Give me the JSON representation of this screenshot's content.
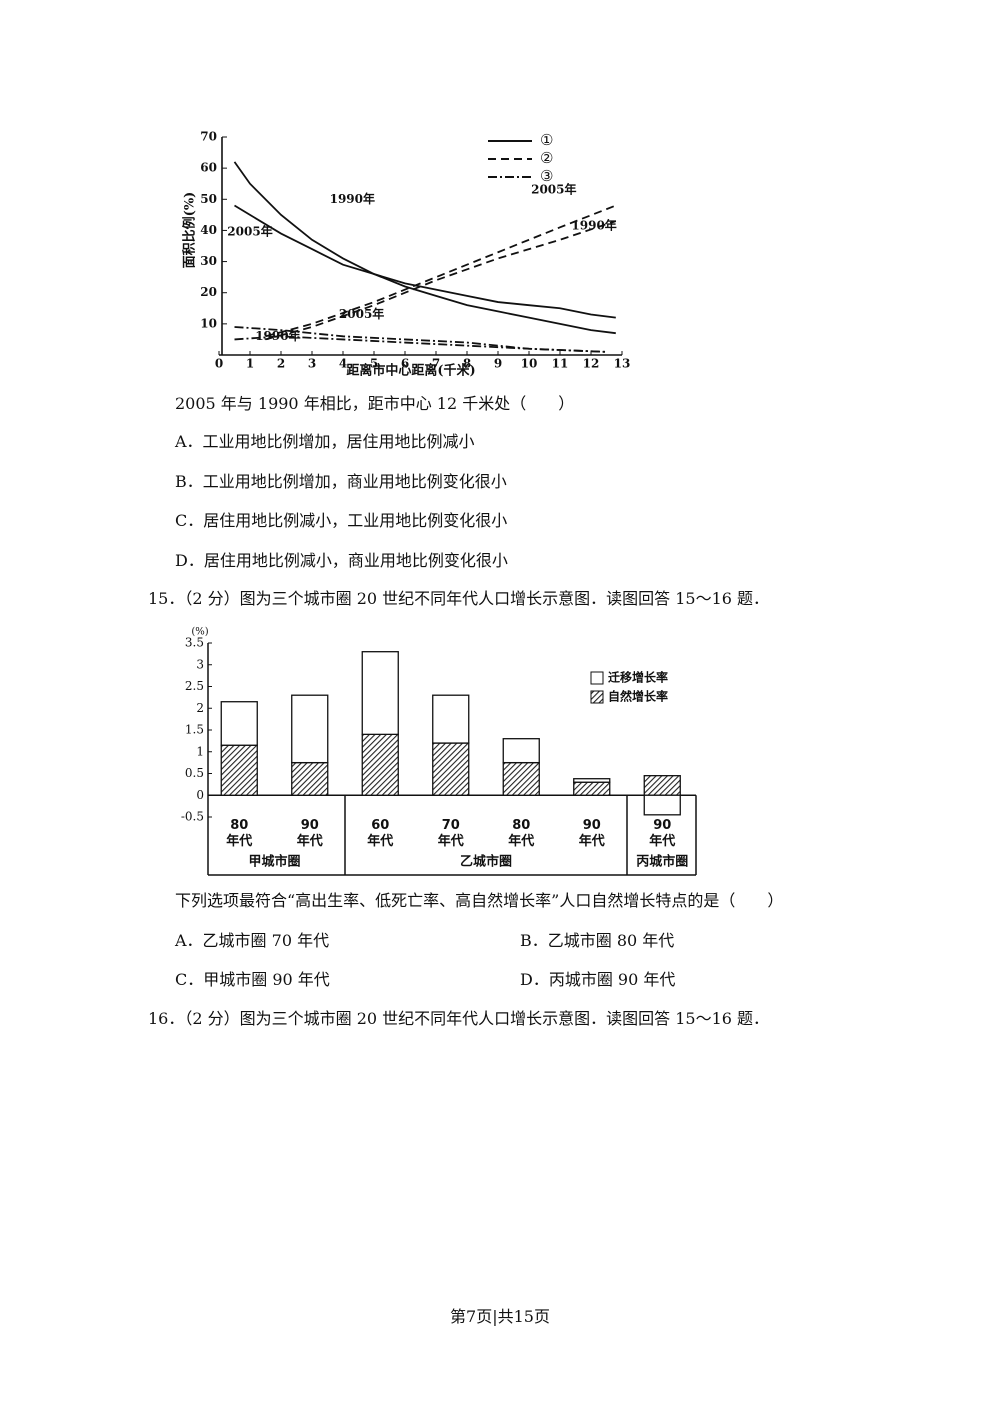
{
  "chart_data": [
    {
      "type": "line",
      "y_label": "面积比例(%)",
      "x_label": "距离市中心距离(千米)",
      "xlim": [
        0,
        13
      ],
      "ylim": [
        0,
        70
      ],
      "xticks": [
        0,
        1,
        2,
        3,
        4,
        5,
        6,
        7,
        8,
        9,
        10,
        11,
        12,
        13
      ],
      "yticks": [
        10,
        20,
        30,
        40,
        50,
        60,
        70
      ],
      "legend": [
        {
          "label": "①",
          "dash": "solid"
        },
        {
          "label": "②",
          "dash": "dashed"
        },
        {
          "label": "③",
          "dash": "dashdot"
        }
      ],
      "series": [
        {
          "name": "1990年",
          "dash": "solid",
          "color": "#111",
          "x": [
            0.5,
            1,
            2,
            3,
            4,
            5,
            6,
            7,
            8,
            9,
            10,
            11,
            12,
            12.8
          ],
          "values": [
            62,
            55,
            45,
            37,
            31,
            26,
            22,
            19,
            16,
            14,
            12,
            10,
            8,
            7
          ]
        },
        {
          "name": "2005年",
          "dash": "solid",
          "color": "#111",
          "x": [
            0.5,
            1,
            2,
            3,
            4,
            5,
            6,
            7,
            8,
            9,
            10,
            11,
            12,
            12.8
          ],
          "values": [
            48,
            45,
            39,
            34,
            29,
            26,
            23,
            21,
            19,
            17,
            16,
            15,
            13,
            12
          ]
        },
        {
          "name": "2005年",
          "dash": "dashed",
          "color": "#111",
          "x": [
            1.5,
            3,
            5,
            7,
            9,
            11,
            12.8
          ],
          "values": [
            6,
            10,
            17,
            25,
            33,
            41,
            48
          ]
        },
        {
          "name": "1990年",
          "dash": "dashed",
          "color": "#111",
          "x": [
            1.5,
            3,
            5,
            7,
            9,
            11,
            12.8
          ],
          "values": [
            5,
            9,
            16,
            24,
            31,
            37,
            43
          ]
        },
        {
          "name": "2005年",
          "dash": "dashdot",
          "color": "#111",
          "x": [
            0.5,
            2,
            4,
            6,
            8,
            10,
            12.5
          ],
          "values": [
            9,
            8,
            6,
            5,
            4,
            2,
            1
          ]
        },
        {
          "name": "1990年",
          "dash": "dashdot",
          "color": "#111",
          "x": [
            0.5,
            2,
            4,
            6,
            8,
            10,
            12.5
          ],
          "values": [
            5,
            6,
            5,
            4,
            3,
            2,
            1
          ]
        }
      ]
    },
    {
      "type": "stacked_bar",
      "y_label": "(%)",
      "ylim": [
        -0.5,
        3.5
      ],
      "yticks": [
        -0.5,
        0,
        0.5,
        1,
        1.5,
        2,
        2.5,
        3,
        3.5
      ],
      "categories": [
        "80\n年代",
        "90\n年代",
        "60\n年代",
        "70\n年代",
        "80\n年代",
        "90\n年代",
        "90\n年代"
      ],
      "groups": [
        {
          "name": "甲城市圈",
          "size": 2
        },
        {
          "name": "乙城市圈",
          "size": 4
        },
        {
          "name": "丙城市圈",
          "size": 1
        }
      ],
      "series": [
        {
          "name": "迁移增长率",
          "pattern": "none",
          "values": [
            1.0,
            1.55,
            1.9,
            1.1,
            0.55,
            0.08,
            -0.45
          ]
        },
        {
          "name": "自然增长率",
          "pattern": "hatch",
          "values": [
            1.15,
            0.75,
            1.4,
            1.2,
            0.75,
            0.3,
            0.45
          ]
        }
      ]
    }
  ],
  "question14": {
    "stem": "2005 年与 1990 年相比，距市中心 12 千米处（　　）",
    "options": [
      "A．工业用地比例增加，居住用地比例减小",
      "B．工业用地比例增加，商业用地比例变化很小",
      "C．居住用地比例减小，工业用地比例变化很小",
      "D．居住用地比例减小，商业用地比例变化很小"
    ]
  },
  "question15": {
    "intro": "15．（2 分）图为三个城市圈 20 世纪不同年代人口增长示意图．读图回答 15～16 题．",
    "stem": "下列选项最符合“高出生率、低死亡率、高自然增长率”人口自然增长特点的是（　　）",
    "options": [
      "A．乙城市圈 70 年代",
      "B．乙城市圈 80 年代",
      "C．甲城市圈 90 年代",
      "D．丙城市圈 90 年代"
    ]
  },
  "question16": {
    "intro": "16．（2 分）图为三个城市圈 20 世纪不同年代人口增长示意图．读图回答 15～16 题．"
  },
  "footer": "第7页|共15页"
}
